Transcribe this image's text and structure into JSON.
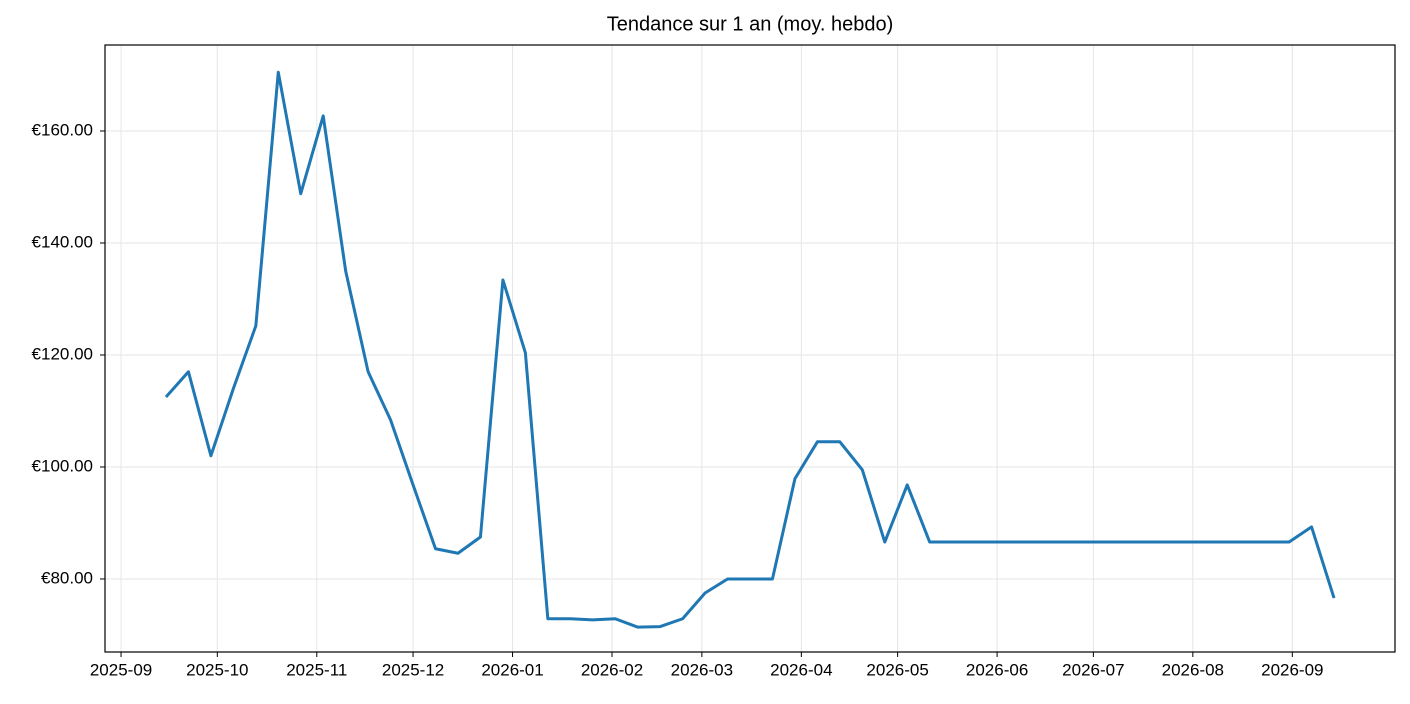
{
  "chart_data": {
    "type": "line",
    "title": "Tendance sur 1 an (moy. hebdo)",
    "x": [
      "2025-09-15",
      "2025-09-22",
      "2025-09-29",
      "2025-10-06",
      "2025-10-13",
      "2025-10-20",
      "2025-10-27",
      "2025-11-03",
      "2025-11-10",
      "2025-11-17",
      "2025-11-24",
      "2025-12-01",
      "2025-12-08",
      "2025-12-15",
      "2025-12-22",
      "2025-12-29",
      "2026-01-05",
      "2026-01-12",
      "2026-01-19",
      "2026-01-26",
      "2026-02-02",
      "2026-02-09",
      "2026-02-16",
      "2026-02-23",
      "2026-03-02",
      "2026-03-09",
      "2026-03-16",
      "2026-03-23",
      "2026-03-30",
      "2026-04-06",
      "2026-04-13",
      "2026-04-20",
      "2026-04-27",
      "2026-05-04",
      "2026-05-11",
      "2026-05-18",
      "2026-05-25",
      "2026-06-01",
      "2026-06-08",
      "2026-06-15",
      "2026-06-22",
      "2026-06-29",
      "2026-07-06",
      "2026-07-13",
      "2026-07-20",
      "2026-07-27",
      "2026-08-03",
      "2026-08-10",
      "2026-08-17",
      "2026-08-24",
      "2026-08-31",
      "2026-09-07",
      "2026-09-14"
    ],
    "series": [
      {
        "color": "#1f77b4",
        "values": [
          112.5,
          117.0,
          102.0,
          114.0,
          125.2,
          170.5,
          148.8,
          162.7,
          135.0,
          117.0,
          108.4,
          96.8,
          85.4,
          84.6,
          87.5,
          133.4,
          120.4,
          72.9,
          72.9,
          72.7,
          72.9,
          71.4,
          71.5,
          72.9,
          77.5,
          80.0,
          80.0,
          80.0,
          97.9,
          104.5,
          104.5,
          99.5,
          86.6,
          96.8,
          86.6,
          86.6,
          86.6,
          86.6,
          86.6,
          86.6,
          86.6,
          86.6,
          86.6,
          86.6,
          86.6,
          86.6,
          86.6,
          86.6,
          86.6,
          86.6,
          86.6,
          89.3,
          76.6
        ]
      }
    ],
    "xlim": [
      "2025-08-27",
      "2026-10-03"
    ],
    "xticks": [
      "2025-09",
      "2025-10",
      "2025-11",
      "2025-12",
      "2026-01",
      "2026-02",
      "2026-03",
      "2026-04",
      "2026-05",
      "2026-06",
      "2026-07",
      "2026-08",
      "2026-09"
    ],
    "ylim": [
      66.96,
      175.36
    ],
    "yticks": [
      {
        "value": 80,
        "label": "€80.00"
      },
      {
        "value": 100,
        "label": "€100.00"
      },
      {
        "value": 120,
        "label": "€120.00"
      },
      {
        "value": 140,
        "label": "€140.00"
      },
      {
        "value": 160,
        "label": "€160.00"
      }
    ],
    "grid": true
  }
}
